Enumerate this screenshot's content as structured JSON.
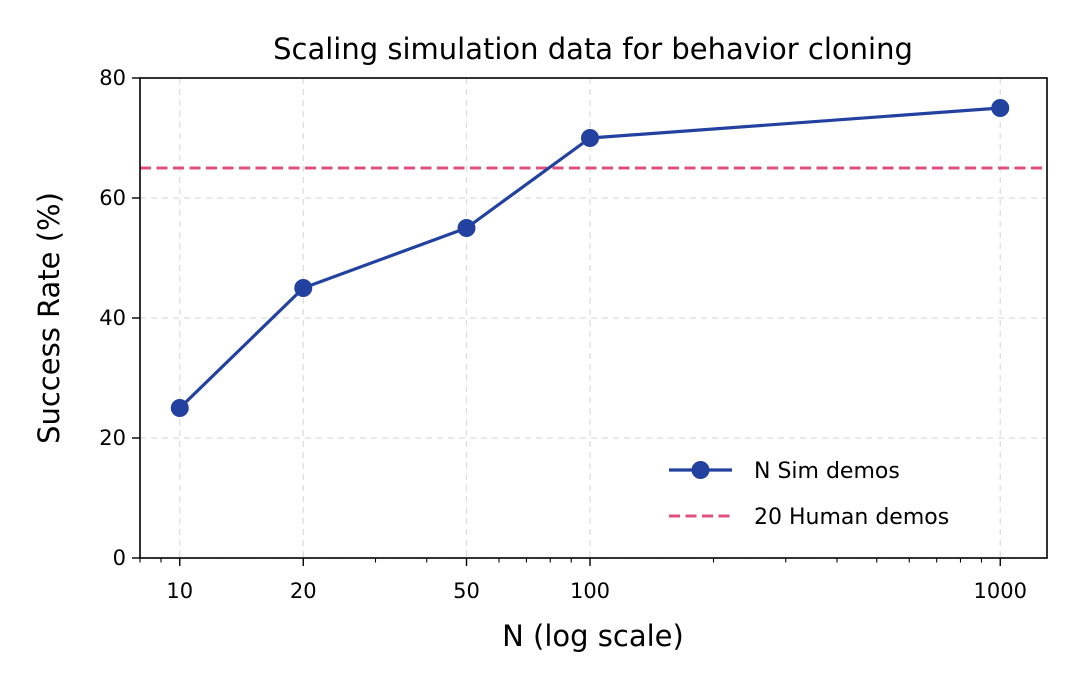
{
  "chart_data": {
    "type": "line",
    "title": "Scaling simulation data for behavior cloning",
    "xlabel": "N (log scale)",
    "ylabel": "Success Rate (%)",
    "xscale": "log",
    "xlim": [
      8,
      1300
    ],
    "ylim": [
      0,
      80
    ],
    "xticks": [
      10,
      20,
      50,
      100,
      1000
    ],
    "xtick_labels": [
      "10",
      "20",
      "50",
      "100",
      "1000"
    ],
    "yticks": [
      0,
      20,
      40,
      60,
      80
    ],
    "ytick_labels": [
      "0",
      "20",
      "40",
      "60",
      "80"
    ],
    "grid": true,
    "legend_position": "lower-right",
    "series": [
      {
        "name": "N Sim demos",
        "style": "solid-with-markers",
        "color": "#2342a0",
        "x": [
          10,
          20,
          50,
          100,
          1000
        ],
        "y": [
          25,
          45,
          55,
          70,
          75
        ]
      }
    ],
    "reference_lines": [
      {
        "name": "20 Human demos",
        "orientation": "horizontal",
        "style": "dashed",
        "color": "#e0507e",
        "value": 65
      }
    ]
  }
}
